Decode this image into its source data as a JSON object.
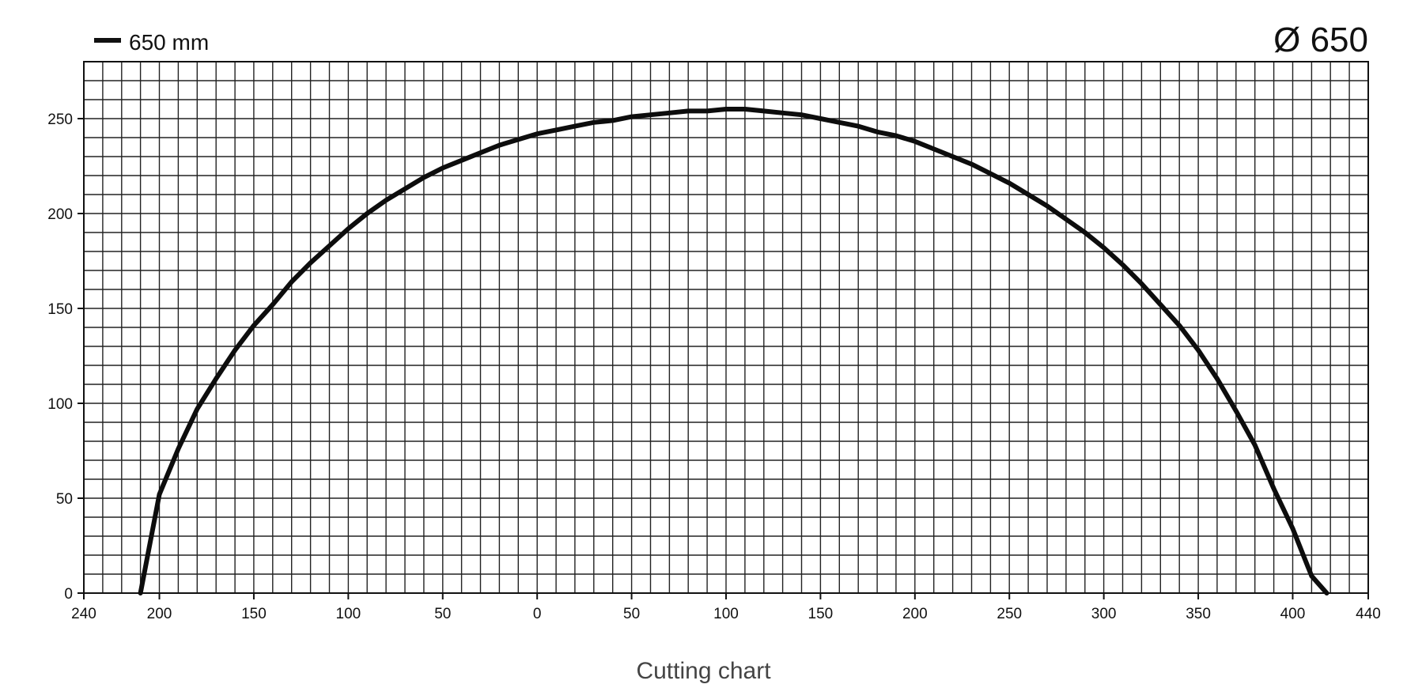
{
  "legend": {
    "label": "650 mm"
  },
  "diameter_label": "Ø 650",
  "caption": "Cutting chart",
  "chart_data": {
    "type": "line",
    "title": "",
    "xlabel": "",
    "ylabel": "",
    "x_tick_labels": [
      "240",
      "200",
      "150",
      "100",
      "50",
      "0",
      "50",
      "100",
      "150",
      "200",
      "250",
      "300",
      "350",
      "400",
      "440"
    ],
    "y_ticks": [
      0,
      50,
      100,
      150,
      200,
      250
    ],
    "ylim": [
      0,
      280
    ],
    "grid": true,
    "series": [
      {
        "name": "650 mm",
        "x": [
          210,
          200,
          190,
          180,
          170,
          160,
          150,
          140,
          130,
          120,
          110,
          100,
          90,
          80,
          70,
          60,
          50,
          40,
          30,
          20,
          10,
          0,
          10,
          20,
          30,
          40,
          50,
          60,
          70,
          80,
          90,
          100,
          110,
          120,
          130,
          140,
          150,
          160,
          170,
          180,
          190,
          200,
          210,
          220,
          230,
          240,
          250,
          260,
          270,
          280,
          290,
          300,
          310,
          320,
          330,
          340,
          350,
          360,
          370,
          380,
          390,
          400,
          410,
          418
        ],
        "y": [
          0,
          52,
          76,
          97,
          113,
          128,
          141,
          152,
          164,
          174,
          183,
          192,
          200,
          207,
          213,
          219,
          224,
          228,
          232,
          236,
          239,
          242,
          244,
          246,
          248,
          249,
          251,
          252,
          253,
          254,
          254,
          255,
          255,
          254,
          253,
          252,
          250,
          248,
          246,
          243,
          241,
          238,
          234,
          230,
          226,
          221,
          216,
          210,
          204,
          197,
          190,
          182,
          173,
          163,
          152,
          141,
          128,
          113,
          96,
          78,
          55,
          34,
          9,
          0
        ]
      }
    ]
  }
}
